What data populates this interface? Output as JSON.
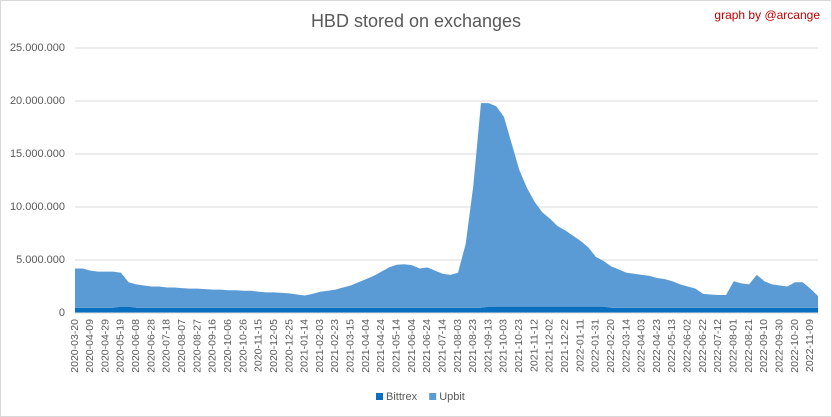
{
  "chart_data": {
    "type": "stacked-area",
    "title": "HBD stored on exchanges",
    "annotation": "graph by @arcange",
    "categories": [
      "2020-03-20",
      null,
      "2020-04-09",
      null,
      "2020-04-29",
      null,
      "2020-05-19",
      null,
      "2020-06-08",
      null,
      "2020-06-28",
      null,
      "2020-07-18",
      null,
      "2020-08-07",
      null,
      "2020-08-27",
      null,
      "2020-09-16",
      null,
      "2020-10-06",
      null,
      "2020-10-26",
      null,
      "2020-11-15",
      null,
      "2020-12-05",
      null,
      "2020-12-25",
      null,
      "2021-01-14",
      null,
      "2021-02-03",
      null,
      "2021-02-23",
      null,
      "2021-03-15",
      null,
      "2021-04-04",
      null,
      "2021-04-24",
      null,
      "2021-05-14",
      null,
      "2021-06-04",
      null,
      "2021-06-24",
      null,
      "2021-07-14",
      null,
      "2021-08-03",
      null,
      "2021-08-23",
      null,
      "2021-09-13",
      null,
      "2021-10-03",
      null,
      "2021-10-23",
      null,
      "2021-11-12",
      null,
      "2021-12-02",
      null,
      "2021-12-22",
      null,
      "2022-01-11",
      null,
      "2022-01-31",
      null,
      "2022-02-20",
      null,
      "2022-03-14",
      null,
      "2022-04-03",
      null,
      "2022-04-23",
      null,
      "2022-05-13",
      null,
      "2022-06-02",
      null,
      "2022-06-22",
      null,
      "2022-07-12",
      null,
      "2022-08-01",
      null,
      "2022-08-21",
      null,
      "2022-09-10",
      null,
      "2022-09-30",
      null,
      "2022-10-20",
      null,
      "2022-11-09",
      null
    ],
    "series": [
      {
        "name": "Bittrex",
        "color": "#0b6fbf",
        "values": [
          500000,
          500000,
          500000,
          500000,
          500000,
          500000,
          600000,
          600000,
          500000,
          500000,
          500000,
          500000,
          500000,
          500000,
          500000,
          500000,
          500000,
          500000,
          500000,
          500000,
          500000,
          500000,
          500000,
          500000,
          500000,
          500000,
          500000,
          500000,
          500000,
          500000,
          500000,
          500000,
          500000,
          500000,
          500000,
          500000,
          500000,
          500000,
          500000,
          500000,
          500000,
          500000,
          500000,
          500000,
          500000,
          500000,
          500000,
          500000,
          500000,
          500000,
          500000,
          500000,
          500000,
          500000,
          600000,
          600000,
          600000,
          600000,
          600000,
          600000,
          600000,
          600000,
          600000,
          600000,
          600000,
          600000,
          600000,
          600000,
          600000,
          600000,
          500000,
          500000,
          500000,
          500000,
          500000,
          500000,
          500000,
          500000,
          500000,
          500000,
          500000,
          500000,
          500000,
          500000,
          500000,
          500000,
          500000,
          500000,
          500000,
          500000,
          500000,
          500000,
          500000,
          500000,
          500000,
          500000,
          500000,
          500000
        ]
      },
      {
        "name": "Upbit",
        "color": "#5b9bd5",
        "values": [
          3700000,
          3700000,
          3500000,
          3400000,
          3400000,
          3400000,
          3200000,
          2300000,
          2200000,
          2100000,
          2000000,
          2000000,
          1900000,
          1900000,
          1850000,
          1800000,
          1800000,
          1750000,
          1700000,
          1700000,
          1650000,
          1650000,
          1600000,
          1600000,
          1500000,
          1450000,
          1450000,
          1400000,
          1350000,
          1250000,
          1150000,
          1300000,
          1500000,
          1600000,
          1700000,
          1900000,
          2100000,
          2400000,
          2700000,
          3000000,
          3400000,
          3800000,
          4050000,
          4100000,
          4000000,
          3700000,
          3800000,
          3500000,
          3200000,
          3100000,
          3300000,
          6000000,
          11500000,
          19300000,
          19200000,
          18900000,
          17900000,
          15400000,
          12900000,
          11200000,
          9900000,
          8900000,
          8300000,
          7600000,
          7200000,
          6700000,
          6200000,
          5600000,
          4700000,
          4300000,
          3900000,
          3600000,
          3300000,
          3200000,
          3100000,
          3000000,
          2800000,
          2700000,
          2500000,
          2200000,
          2000000,
          1800000,
          1300000,
          1250000,
          1200000,
          1200000,
          2500000,
          2300000,
          2200000,
          3100000,
          2500000,
          2200000,
          2100000,
          2000000,
          2400000,
          2400000,
          1800000,
          1100000
        ]
      }
    ],
    "ylim": [
      0,
      25000000
    ],
    "yticks": [
      0,
      {
        "value": 5000000,
        "label": "5.000.000"
      },
      {
        "value": 10000000,
        "label": "10.000.000"
      },
      {
        "value": 15000000,
        "label": "15.000.000"
      },
      {
        "value": 20000000,
        "label": "20.000.000"
      },
      {
        "value": 25000000,
        "label": "25.000.000"
      }
    ],
    "grid": true,
    "legend": "bottom"
  }
}
